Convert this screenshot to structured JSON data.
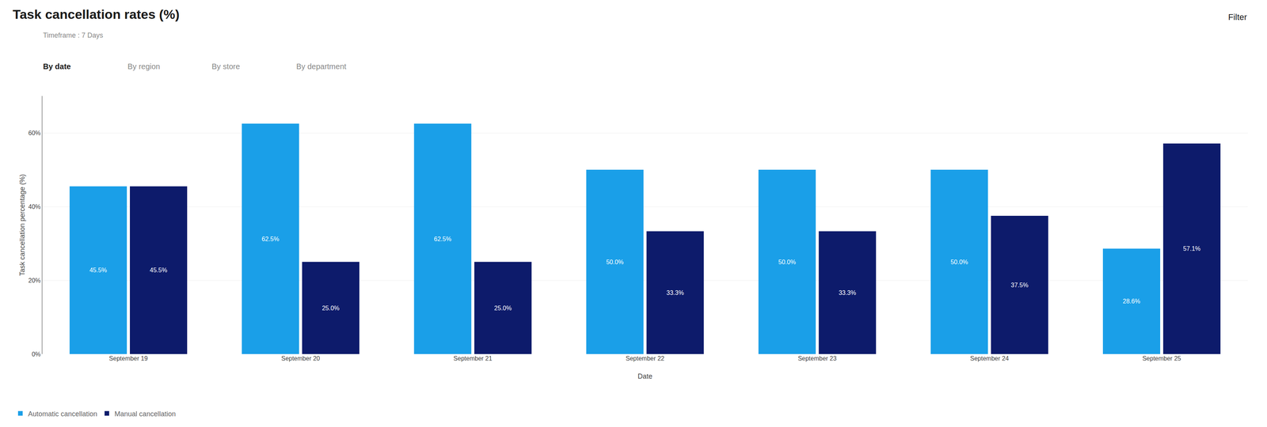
{
  "chart_data": {
    "type": "bar",
    "title": "Task cancellation rates (%)",
    "subtitle": "Timeframe : 7 Days",
    "annotations": [
      "By date",
      "By region",
      "By store",
      "By department",
      "Filter"
    ],
    "xlabel": "Date",
    "ylabel": "Task cancellation percentage (%)",
    "categories": [
      "September 19",
      "September 20",
      "September 21",
      "September 22",
      "September 23",
      "September 24",
      "September 25"
    ],
    "series": [
      {
        "name": "Automatic cancellation",
        "color": "#1A9FE8",
        "values": [
          45.5,
          62.5,
          62.5,
          50.0,
          50.0,
          50.0,
          28.6
        ],
        "value_labels": [
          "45.5%",
          "62.5%",
          "62.5%",
          "50.0%",
          "50.0%",
          "50.0%",
          "28.6%"
        ]
      },
      {
        "name": "Manual cancellation",
        "color": "#0D1B6B",
        "values": [
          45.5,
          25.0,
          25.0,
          33.3,
          33.3,
          37.5,
          57.1
        ],
        "value_labels": [
          "45.5%",
          "25.0%",
          "25.0%",
          "33.3%",
          "33.3%",
          "37.5%",
          "57.1%"
        ]
      }
    ],
    "ylim": [
      0,
      70
    ],
    "yticks": [
      {
        "value": 0,
        "label": "0%"
      },
      {
        "value": 20,
        "label": "20%"
      },
      {
        "value": 40,
        "label": "40%"
      },
      {
        "value": 60,
        "label": "60%"
      }
    ],
    "grid": true,
    "legend": "lower left",
    "data_labels": true
  }
}
